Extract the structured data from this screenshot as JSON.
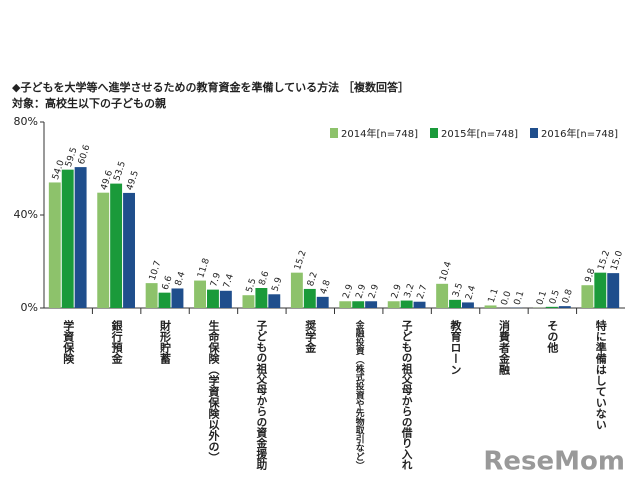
{
  "chart_data": {
    "type": "bar",
    "title": "◆子どもを大学等へ進学させるための教育資金を準備している方法 ［複数回答］",
    "subtitle": "対象：高校生以下の子どもの親",
    "watermark": "ReseMom",
    "categories": [
      "学資保険",
      "銀行預金",
      "財形貯蓄",
      "生命保険（学資保険以外の）",
      "子どもの祖父母からの資金援助",
      "奨学金",
      "金融投資（株式投資や先物取引など）",
      "子どもの祖父母からの借り入れ",
      "教育ローン",
      "消費者金融",
      "その他",
      "特に準備はしていない"
    ],
    "series": [
      {
        "name": "2014年[n=748]",
        "color": "#8dc26b",
        "values": [
          54.0,
          49.6,
          10.7,
          11.8,
          5.5,
          15.2,
          2.9,
          2.9,
          10.4,
          1.1,
          0.1,
          9.8
        ],
        "value_labels": [
          "54.0",
          "49.6",
          "10.7",
          "11.8",
          "5.5",
          "15.2",
          "2.9",
          "2.9",
          "10.4",
          "1.1",
          "0.1",
          "9.8"
        ]
      },
      {
        "name": "2015年[n=748]",
        "color": "#1a9a3a",
        "values": [
          59.5,
          53.5,
          6.6,
          7.9,
          8.6,
          8.2,
          2.9,
          3.2,
          3.5,
          0.0,
          0.5,
          15.2
        ],
        "value_labels": [
          "59.5",
          "53.5",
          "6.6",
          "7.9",
          "8.6",
          "8.2",
          "2.9",
          "3.2",
          "3.5",
          "0.0",
          "0.5",
          "15.2"
        ]
      },
      {
        "name": "2016年[n=748]",
        "color": "#1f4e8c",
        "values": [
          60.6,
          49.5,
          8.4,
          7.4,
          5.9,
          4.8,
          2.9,
          2.7,
          2.4,
          0.1,
          0.8,
          15.0
        ],
        "value_labels": [
          "60.6",
          "49.5",
          "8.4",
          "7.4",
          "5.9",
          "4.8",
          "2.9",
          "2.7",
          "2.4",
          "0.1",
          "0.8",
          "15.0"
        ]
      }
    ],
    "ylim": [
      0,
      80
    ],
    "yticks": [
      {
        "value": 0,
        "label": "0%"
      },
      {
        "value": 40,
        "label": "40%"
      },
      {
        "value": 80,
        "label": "80%"
      }
    ],
    "legend": "top-right"
  }
}
